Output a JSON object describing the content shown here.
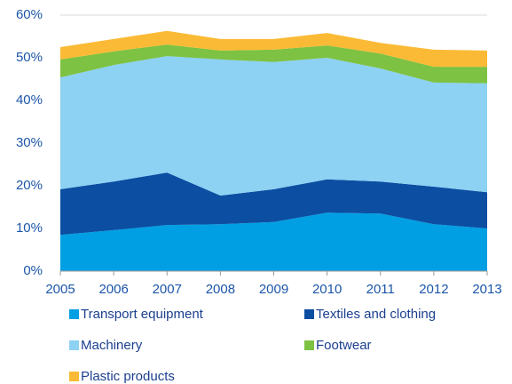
{
  "chart_data": {
    "type": "stacked_area",
    "x": [
      2005,
      2006,
      2007,
      2008,
      2009,
      2010,
      2011,
      2012,
      2013
    ],
    "series": [
      {
        "name": "Transport equipment",
        "color": "#009fe3",
        "values": [
          8.5,
          9.6,
          10.8,
          11.0,
          11.5,
          13.7,
          13.5,
          11.0,
          10.0
        ]
      },
      {
        "name": "Textiles and clothing",
        "color": "#0b4ea2",
        "values": [
          10.7,
          11.4,
          12.3,
          6.7,
          7.7,
          7.8,
          7.5,
          8.8,
          8.5
        ]
      },
      {
        "name": "Machinery",
        "color": "#8dd1f3",
        "values": [
          26.2,
          27.3,
          27.3,
          31.9,
          29.8,
          28.5,
          26.5,
          24.4,
          25.5
        ]
      },
      {
        "name": "Footwear",
        "color": "#7dc242",
        "values": [
          4.2,
          3.2,
          2.7,
          2.1,
          2.9,
          2.9,
          3.5,
          3.7,
          3.9
        ]
      },
      {
        "name": "Plastic products",
        "color": "#fbba35",
        "values": [
          2.9,
          2.9,
          3.2,
          2.7,
          2.5,
          2.9,
          2.5,
          4.0,
          3.8
        ]
      }
    ],
    "xlim": [
      2005,
      2013
    ],
    "xticks": [
      2005,
      2006,
      2007,
      2008,
      2009,
      2010,
      2011,
      2012,
      2013
    ],
    "ylim": [
      0,
      60
    ],
    "yticks": [
      {
        "value": 0,
        "label": "0%"
      },
      {
        "value": 10,
        "label": "10%"
      },
      {
        "value": 20,
        "label": "20%"
      },
      {
        "value": 30,
        "label": "30%"
      },
      {
        "value": 40,
        "label": "40%"
      },
      {
        "value": 50,
        "label": "50%"
      },
      {
        "value": 60,
        "label": "60%"
      }
    ],
    "grid": true
  }
}
